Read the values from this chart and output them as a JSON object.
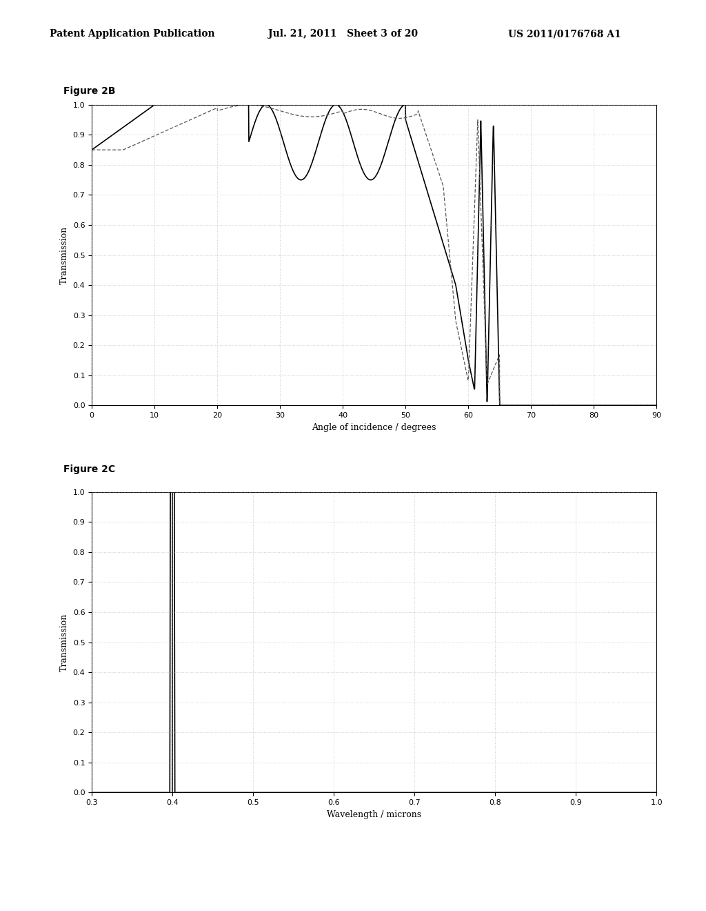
{
  "header_left": "Patent Application Publication",
  "header_mid": "Jul. 21, 2011   Sheet 3 of 20",
  "header_right": "US 2011/0176768 A1",
  "fig2b_label": "Figure 2B",
  "fig2b_xlabel": "Angle of incidence / degrees",
  "fig2b_ylabel": "Transmission",
  "fig2b_xlim": [
    0,
    90
  ],
  "fig2b_ylim": [
    0,
    1.0
  ],
  "fig2b_xticks": [
    0,
    10,
    20,
    30,
    40,
    50,
    60,
    70,
    80,
    90
  ],
  "fig2b_yticks": [
    0,
    0.1,
    0.2,
    0.3,
    0.4,
    0.5,
    0.6,
    0.7,
    0.8,
    0.9,
    1
  ],
  "fig2c_label": "Figure 2C",
  "fig2c_xlabel": "Wavelength / microns",
  "fig2c_ylabel": "Transmission",
  "fig2c_xlim": [
    0.3,
    1.0
  ],
  "fig2c_ylim": [
    0,
    1.0
  ],
  "fig2c_xticks": [
    0.3,
    0.4,
    0.5,
    0.6,
    0.7,
    0.8,
    0.9,
    1.0
  ],
  "fig2c_yticks": [
    0,
    0.1,
    0.2,
    0.3,
    0.4,
    0.5,
    0.6,
    0.7,
    0.8,
    0.9,
    1
  ],
  "background_color": "#ffffff",
  "line_color": "#000000",
  "dotted_color": "#555555",
  "grid_color": "#aaaaaa"
}
